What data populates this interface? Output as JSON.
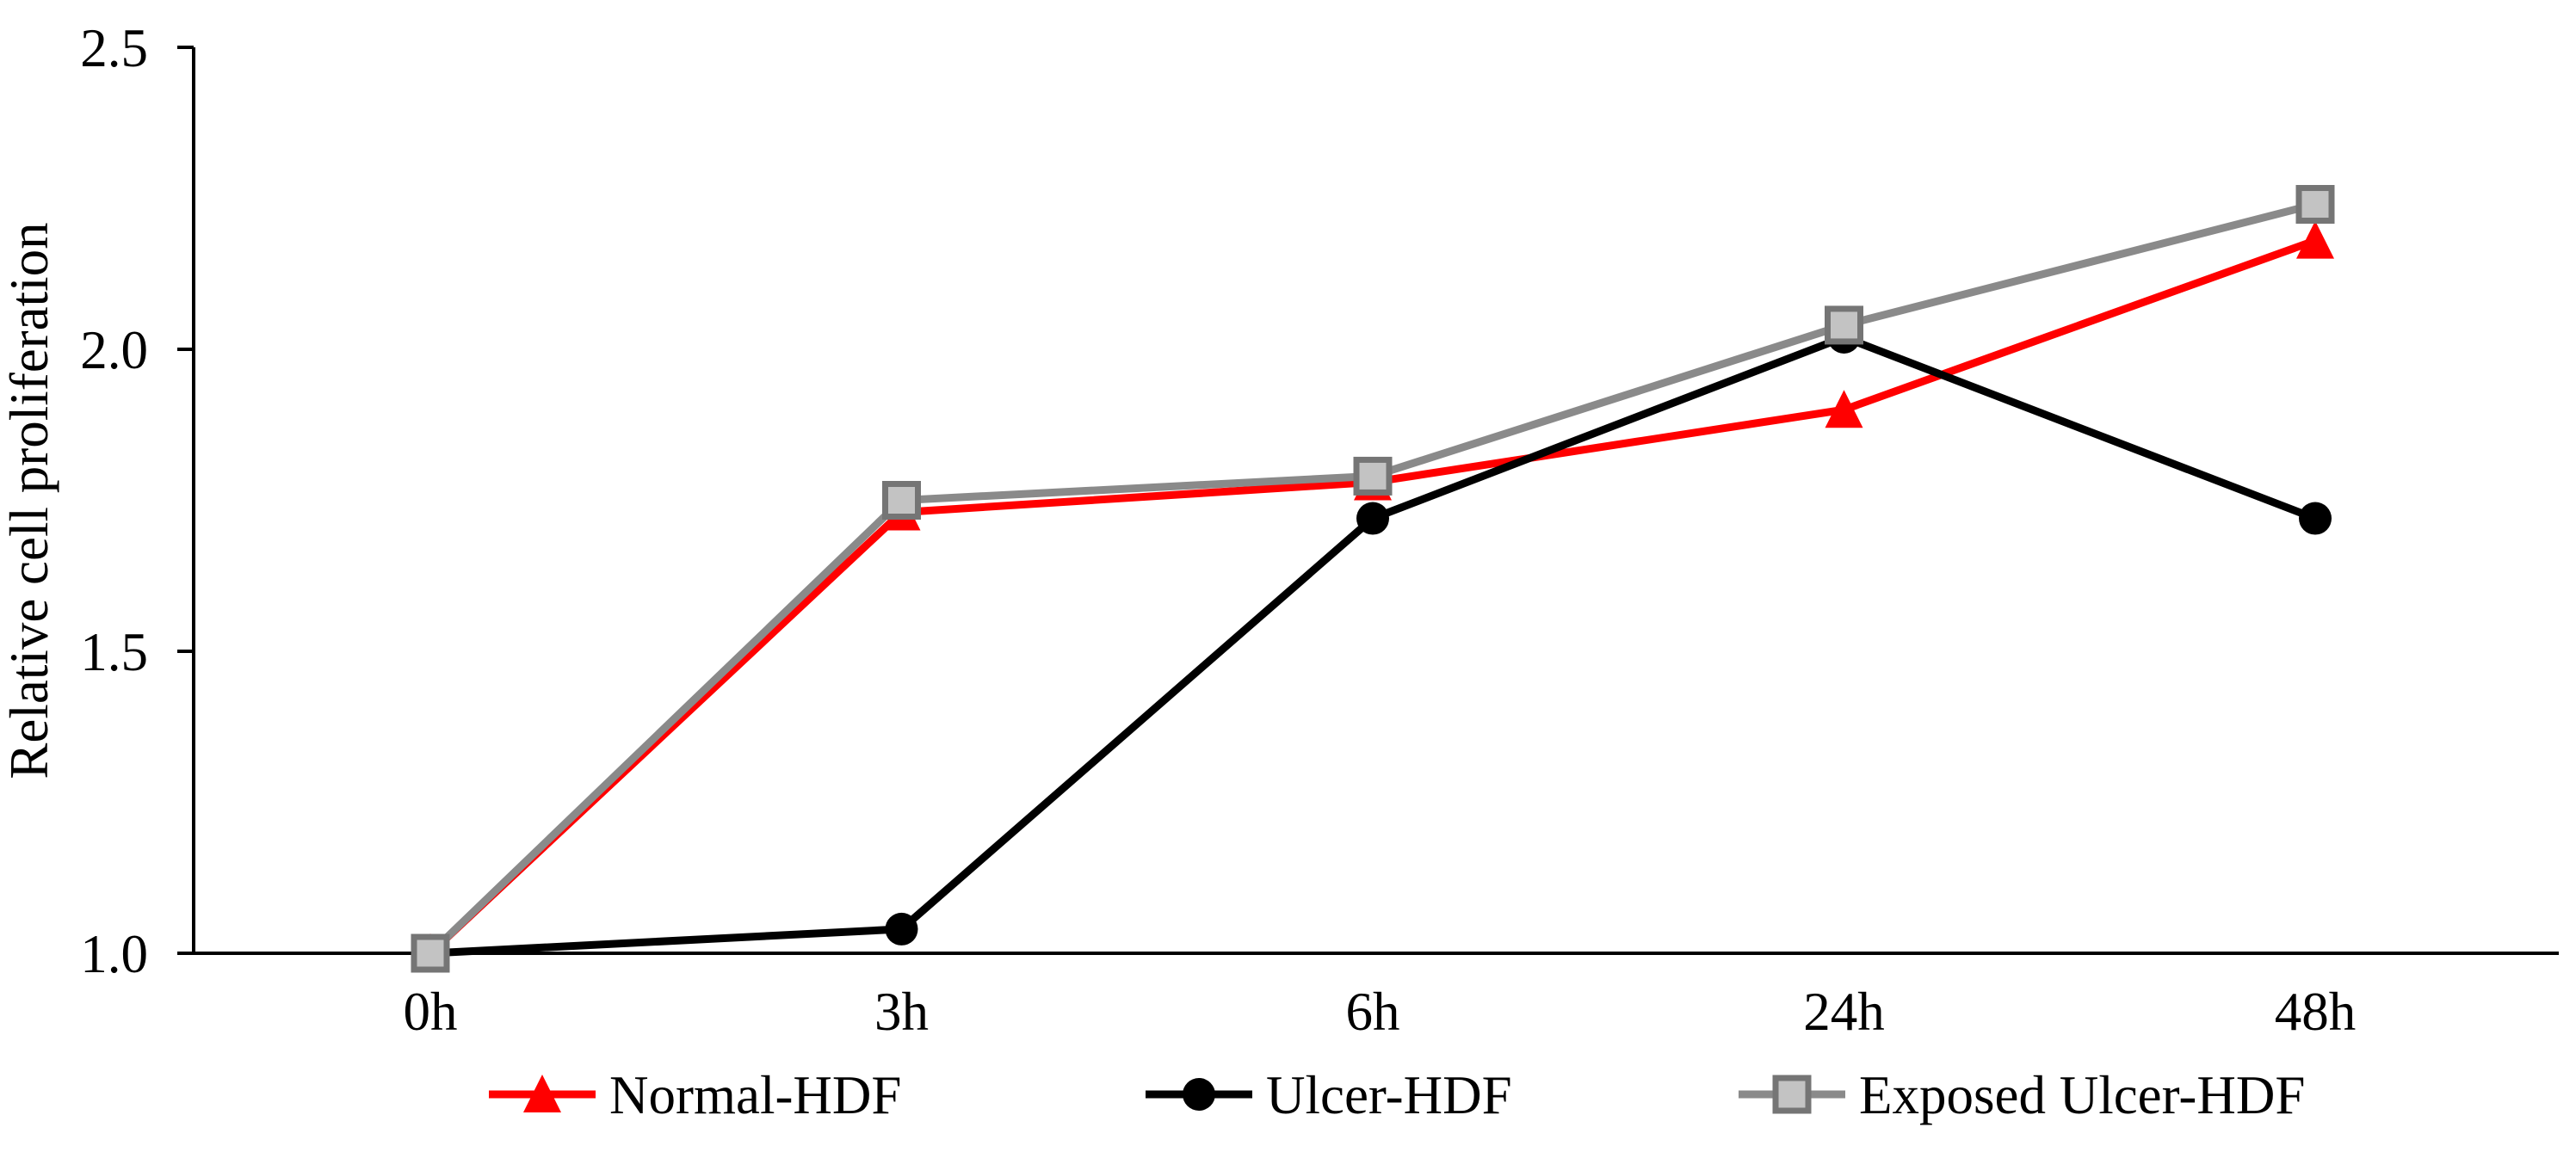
{
  "chart_data": {
    "type": "line",
    "title": "",
    "xlabel": "",
    "ylabel": "Relative cell proliferation",
    "categories": [
      "0h",
      "3h",
      "6h",
      "24h",
      "48h"
    ],
    "series": [
      {
        "name": "Normal-HDF",
        "marker": "triangle",
        "color": "#FF0000",
        "marker_fill": "#FF0000",
        "marker_edge": "#FF0000",
        "values": [
          1.0,
          1.73,
          1.78,
          1.9,
          2.18
        ]
      },
      {
        "name": "Ulcer-HDF",
        "marker": "circle",
        "color": "#000000",
        "marker_fill": "#000000",
        "marker_edge": "#000000",
        "values": [
          1.0,
          1.04,
          1.72,
          2.02,
          1.72
        ]
      },
      {
        "name": "Exposed Ulcer-HDF",
        "marker": "square",
        "color": "#8A8A8A",
        "marker_fill": "#C3C3C3",
        "marker_edge": "#757575",
        "values": [
          1.0,
          1.75,
          1.79,
          2.04,
          2.24
        ]
      }
    ],
    "ylim": [
      1.0,
      2.5
    ],
    "yticks": [
      1.0,
      1.5,
      2.0,
      2.5
    ],
    "ytick_labels": [
      "1.0",
      "1.5",
      "2.0",
      "2.5"
    ],
    "grid": false,
    "legend_position": "bottom",
    "axis_color": "#000000",
    "background_color": "#FFFFFF"
  }
}
